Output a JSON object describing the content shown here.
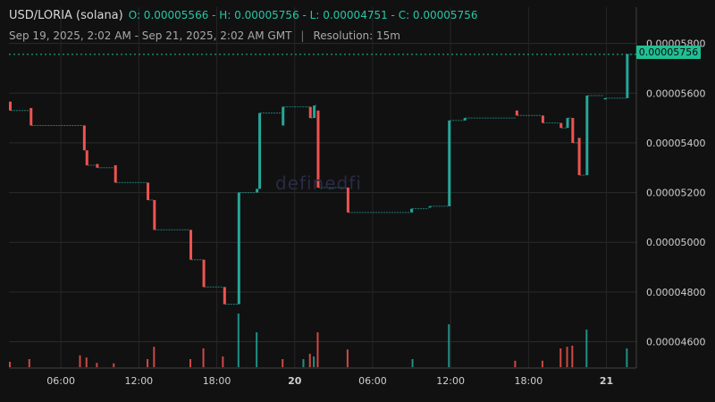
{
  "header": {
    "pair": "USD/LORIA (solana)",
    "ohlc": "O: 0.00005566 - H: 0.00005756 - L: 0.00004751 - C: 0.00005756",
    "range": "Sep 19, 2025, 2:02 AM - Sep 21, 2025, 2:02 AM GMT",
    "separator": "|",
    "resolution": "Resolution: 15m"
  },
  "watermark": "definedfi",
  "last_price_label": "0.00005756",
  "colors": {
    "up": "#26a69a",
    "down": "#ef5350",
    "background": "#111111",
    "grid": "#2a2a2a",
    "text": "#cfcfcf"
  },
  "chart_data": {
    "type": "candlestick",
    "grid": true,
    "y_ticks": [
      "0.00004600",
      "0.00004800",
      "0.00005000",
      "0.00005200",
      "0.00005400",
      "0.00005600",
      "0.00005800"
    ],
    "y_tick_values": [
      4.6e-05,
      4.8e-05,
      5e-05,
      5.2e-05,
      5.4e-05,
      5.6e-05,
      5.8e-05
    ],
    "y_range": [
      4.494e-05,
      5.946e-05
    ],
    "x_ticks": [
      {
        "label": "06:00",
        "hour": 4,
        "bold": false
      },
      {
        "label": "12:00",
        "hour": 10,
        "bold": false
      },
      {
        "label": "18:00",
        "hour": 16,
        "bold": false
      },
      {
        "label": "20",
        "hour": 22,
        "bold": true
      },
      {
        "label": "06:00",
        "hour": 28,
        "bold": false
      },
      {
        "label": "12:00",
        "hour": 34,
        "bold": false
      },
      {
        "label": "18:00",
        "hour": 40,
        "bold": false
      },
      {
        "label": "21",
        "hour": 46,
        "bold": true
      }
    ],
    "x_range_hours": [
      0,
      48.3
    ],
    "candles": [
      {
        "h": 0.0,
        "o": 5.566e-05,
        "c": 5.53e-05
      },
      {
        "h": 1.6,
        "o": 5.54e-05,
        "c": 5.47e-05
      },
      {
        "h": 5.7,
        "o": 5.47e-05,
        "c": 5.37e-05
      },
      {
        "h": 5.9,
        "o": 5.37e-05,
        "c": 5.31e-05
      },
      {
        "h": 6.7,
        "o": 5.315e-05,
        "c": 5.3e-05
      },
      {
        "h": 8.1,
        "o": 5.31e-05,
        "c": 5.24e-05
      },
      {
        "h": 10.6,
        "o": 5.24e-05,
        "c": 5.17e-05
      },
      {
        "h": 11.1,
        "o": 5.17e-05,
        "c": 5.05e-05
      },
      {
        "h": 13.9,
        "o": 5.05e-05,
        "c": 4.93e-05
      },
      {
        "h": 14.9,
        "o": 4.93e-05,
        "c": 4.82e-05
      },
      {
        "h": 16.5,
        "o": 4.82e-05,
        "c": 4.751e-05
      },
      {
        "h": 17.6,
        "o": 4.751e-05,
        "c": 5.2e-05
      },
      {
        "h": 19.0,
        "o": 5.2e-05,
        "c": 5.215e-05
      },
      {
        "h": 19.2,
        "o": 5.215e-05,
        "c": 5.52e-05
      },
      {
        "h": 21.0,
        "o": 5.47e-05,
        "c": 5.545e-05
      },
      {
        "h": 23.1,
        "o": 5.545e-05,
        "c": 5.5e-05
      },
      {
        "h": 23.4,
        "o": 5.5e-05,
        "c": 5.55e-05
      },
      {
        "h": 23.7,
        "o": 5.53e-05,
        "c": 5.22e-05
      },
      {
        "h": 26.0,
        "o": 5.22e-05,
        "c": 5.12e-05
      },
      {
        "h": 30.9,
        "o": 5.12e-05,
        "c": 5.135e-05
      },
      {
        "h": 32.3,
        "o": 5.14e-05,
        "c": 5.145e-05
      },
      {
        "h": 33.8,
        "o": 5.145e-05,
        "c": 5.49e-05
      },
      {
        "h": 35.0,
        "o": 5.49e-05,
        "c": 5.5e-05
      },
      {
        "h": 39.0,
        "o": 5.53e-05,
        "c": 5.51e-05
      },
      {
        "h": 41.0,
        "o": 5.51e-05,
        "c": 5.48e-05
      },
      {
        "h": 42.4,
        "o": 5.48e-05,
        "c": 5.46e-05
      },
      {
        "h": 42.9,
        "o": 5.46e-05,
        "c": 5.5e-05
      },
      {
        "h": 43.3,
        "o": 5.5e-05,
        "c": 5.4e-05
      },
      {
        "h": 43.8,
        "o": 5.42e-05,
        "c": 5.27e-05
      },
      {
        "h": 44.4,
        "o": 5.27e-05,
        "c": 5.59e-05
      },
      {
        "h": 45.8,
        "o": 5.58e-05,
        "c": 5.58e-05
      },
      {
        "h": 47.5,
        "o": 5.58e-05,
        "c": 5.756e-05
      }
    ],
    "volume": [
      {
        "h": 0.0,
        "v": 0.1,
        "up": false
      },
      {
        "h": 1.5,
        "v": 0.15,
        "up": false
      },
      {
        "h": 5.4,
        "v": 0.22,
        "up": false
      },
      {
        "h": 5.9,
        "v": 0.18,
        "up": false
      },
      {
        "h": 6.7,
        "v": 0.08,
        "up": false
      },
      {
        "h": 8.0,
        "v": 0.07,
        "up": false
      },
      {
        "h": 10.6,
        "v": 0.15,
        "up": false
      },
      {
        "h": 11.1,
        "v": 0.38,
        "up": false
      },
      {
        "h": 13.9,
        "v": 0.15,
        "up": false
      },
      {
        "h": 14.9,
        "v": 0.35,
        "up": false
      },
      {
        "h": 16.4,
        "v": 0.2,
        "up": false
      },
      {
        "h": 17.6,
        "v": 1.0,
        "up": true
      },
      {
        "h": 19.0,
        "v": 0.65,
        "up": true
      },
      {
        "h": 21.0,
        "v": 0.15,
        "up": false
      },
      {
        "h": 22.6,
        "v": 0.15,
        "up": true
      },
      {
        "h": 23.1,
        "v": 0.25,
        "up": false
      },
      {
        "h": 23.4,
        "v": 0.2,
        "up": true
      },
      {
        "h": 23.7,
        "v": 0.65,
        "up": false
      },
      {
        "h": 26.0,
        "v": 0.33,
        "up": false
      },
      {
        "h": 31.0,
        "v": 0.15,
        "up": true
      },
      {
        "h": 33.8,
        "v": 0.8,
        "up": true
      },
      {
        "h": 38.9,
        "v": 0.12,
        "up": false
      },
      {
        "h": 41.0,
        "v": 0.12,
        "up": false
      },
      {
        "h": 42.4,
        "v": 0.35,
        "up": false
      },
      {
        "h": 42.9,
        "v": 0.38,
        "up": false
      },
      {
        "h": 43.3,
        "v": 0.4,
        "up": false
      },
      {
        "h": 44.4,
        "v": 0.7,
        "up": true
      },
      {
        "h": 47.5,
        "v": 0.35,
        "up": true
      }
    ]
  }
}
